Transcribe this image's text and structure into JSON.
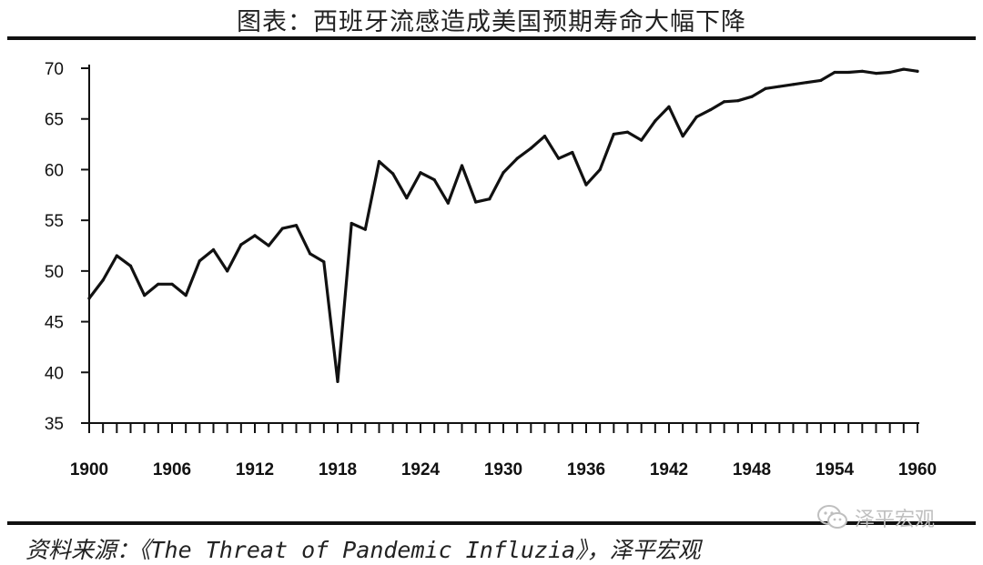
{
  "title": "图表：西班牙流感造成美国预期寿命大幅下降",
  "source": "资料来源：《The Threat of Pandemic Influzia》，泽平宏观",
  "watermark": {
    "icon": "wechat-icon",
    "text": "泽平宏观"
  },
  "colors": {
    "line": "#111111",
    "rule": "#111111",
    "watermark": "#bfbfbf"
  },
  "chart_data": {
    "type": "line",
    "title": "",
    "xlabel": "",
    "ylabel": "",
    "xlim": [
      1900,
      1960
    ],
    "ylim": [
      35,
      70
    ],
    "grid": false,
    "legend": "none",
    "x_ticks": [
      1900,
      1906,
      1912,
      1918,
      1924,
      1930,
      1936,
      1942,
      1948,
      1954,
      1960
    ],
    "y_ticks": [
      35,
      40,
      45,
      50,
      55,
      60,
      65,
      70
    ],
    "series": [
      {
        "x": [
          1900,
          1901,
          1902,
          1903,
          1904,
          1905,
          1906,
          1907,
          1908,
          1909,
          1910,
          1911,
          1912,
          1913,
          1914,
          1915,
          1916,
          1917,
          1918,
          1919,
          1920,
          1921,
          1922,
          1923,
          1924,
          1925,
          1926,
          1927,
          1928,
          1929,
          1930,
          1931,
          1932,
          1933,
          1934,
          1935,
          1936,
          1937,
          1938,
          1939,
          1940,
          1941,
          1942,
          1943,
          1944,
          1945,
          1946,
          1947,
          1948,
          1949,
          1950,
          1951,
          1952,
          1953,
          1954,
          1955,
          1956,
          1957,
          1958,
          1959,
          1960
        ],
        "values": [
          47.3,
          49.1,
          51.5,
          50.5,
          47.6,
          48.7,
          48.7,
          47.6,
          51.0,
          52.1,
          50.0,
          52.6,
          53.5,
          52.5,
          54.2,
          54.5,
          51.7,
          50.9,
          39.1,
          54.7,
          54.1,
          60.8,
          59.6,
          57.2,
          59.7,
          59.0,
          56.7,
          60.4,
          56.8,
          57.1,
          59.7,
          61.1,
          62.1,
          63.3,
          61.1,
          61.7,
          58.5,
          60.0,
          63.5,
          63.7,
          62.9,
          64.8,
          66.2,
          63.3,
          65.2,
          65.9,
          66.7,
          66.8,
          67.2,
          68.0,
          68.2,
          68.4,
          68.6,
          68.8,
          69.6,
          69.6,
          69.7,
          69.5,
          69.6,
          69.9,
          69.7
        ]
      }
    ]
  }
}
